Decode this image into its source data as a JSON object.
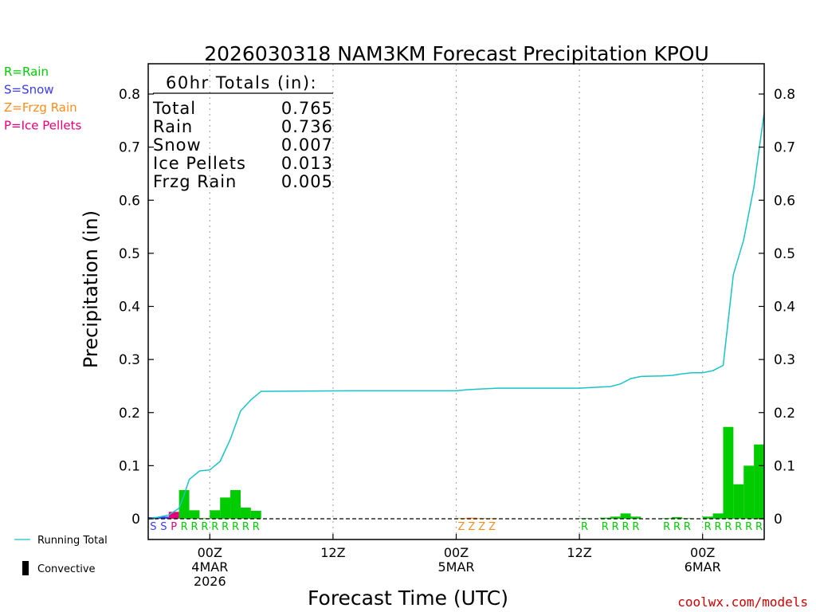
{
  "chart_data": {
    "type": "bar",
    "title": "2026030318 NAM3KM Forecast Precipitation KPOU",
    "xlabel": "Forecast Time (UTC)",
    "ylabel": "Precipitation (in)",
    "ylim": [
      0,
      0.85
    ],
    "xlim": [
      0,
      60
    ],
    "y_ticks": [
      0,
      0.1,
      0.2,
      0.3,
      0.4,
      0.5,
      0.6,
      0.7,
      0.8
    ],
    "y_tick_labels": [
      "0",
      "0.1",
      "0.2",
      "0.3",
      "0.4",
      "0.5",
      "0.6",
      "0.7",
      "0.8"
    ],
    "x_ticks": [
      {
        "hour": 6,
        "lines": [
          "00Z",
          "4MAR",
          "2026"
        ]
      },
      {
        "hour": 18,
        "lines": [
          "12Z"
        ]
      },
      {
        "hour": 30,
        "lines": [
          "00Z",
          "5MAR"
        ]
      },
      {
        "hour": 42,
        "lines": [
          "12Z"
        ]
      },
      {
        "hour": 54,
        "lines": [
          "00Z",
          "6MAR"
        ]
      }
    ],
    "legend": [
      {
        "label": "R=Rain",
        "color": "#00cc00"
      },
      {
        "label": "S=Snow",
        "color": "#3a3aff"
      },
      {
        "label": "Z=Frzg Rain",
        "color": "#ff8c1a"
      },
      {
        "label": "P=Ice Pellets",
        "color": "#e6007a"
      }
    ],
    "line_legend": "Running Total",
    "bar_legend": "Convective",
    "totals": {
      "header": "60hr Totals (in):",
      "rows": [
        {
          "label": "Total",
          "value": "0.765"
        },
        {
          "label": "Rain",
          "value": "0.736"
        },
        {
          "label": "Snow",
          "value": "0.007"
        },
        {
          "label": "Ice Pellets",
          "value": "0.013"
        },
        {
          "label": "Frzg Rain",
          "value": "0.005"
        }
      ]
    },
    "hourly": [
      {
        "hour": 1,
        "value": 0.003,
        "type": "S"
      },
      {
        "hour": 2,
        "value": 0.004,
        "type": "S"
      },
      {
        "hour": 3,
        "value": 0.013,
        "type": "P"
      },
      {
        "hour": 4,
        "value": 0.054,
        "type": "R"
      },
      {
        "hour": 5,
        "value": 0.016,
        "type": "R"
      },
      {
        "hour": 6,
        "value": 0.001,
        "type": "R"
      },
      {
        "hour": 7,
        "value": 0.016,
        "type": "R"
      },
      {
        "hour": 8,
        "value": 0.04,
        "type": "R"
      },
      {
        "hour": 9,
        "value": 0.054,
        "type": "R"
      },
      {
        "hour": 10,
        "value": 0.021,
        "type": "R"
      },
      {
        "hour": 11,
        "value": 0.015,
        "type": "R"
      },
      {
        "hour": 31,
        "value": 0.001,
        "type": "Z"
      },
      {
        "hour": 32,
        "value": 0.002,
        "type": "Z"
      },
      {
        "hour": 33,
        "value": 0.001,
        "type": "Z"
      },
      {
        "hour": 34,
        "value": 0.001,
        "type": "Z"
      },
      {
        "hour": 43,
        "value": 0.001,
        "type": "R"
      },
      {
        "hour": 45,
        "value": 0.002,
        "type": "R"
      },
      {
        "hour": 46,
        "value": 0.004,
        "type": "R"
      },
      {
        "hour": 47,
        "value": 0.01,
        "type": "R"
      },
      {
        "hour": 48,
        "value": 0.004,
        "type": "R"
      },
      {
        "hour": 51,
        "value": 0.001,
        "type": "R"
      },
      {
        "hour": 52,
        "value": 0.003,
        "type": "R"
      },
      {
        "hour": 53,
        "value": 0.001,
        "type": "R"
      },
      {
        "hour": 55,
        "value": 0.004,
        "type": "R"
      },
      {
        "hour": 56,
        "value": 0.01,
        "type": "R"
      },
      {
        "hour": 57,
        "value": 0.173,
        "type": "R"
      },
      {
        "hour": 58,
        "value": 0.065,
        "type": "R"
      },
      {
        "hour": 59,
        "value": 0.1,
        "type": "R"
      },
      {
        "hour": 60,
        "value": 0.14,
        "type": "R"
      }
    ],
    "running_total": [
      {
        "hour": 0,
        "value": 0.0
      },
      {
        "hour": 1,
        "value": 0.003
      },
      {
        "hour": 2,
        "value": 0.007
      },
      {
        "hour": 3,
        "value": 0.02
      },
      {
        "hour": 3.5,
        "value": 0.045
      },
      {
        "hour": 4,
        "value": 0.074
      },
      {
        "hour": 5,
        "value": 0.09
      },
      {
        "hour": 6,
        "value": 0.092
      },
      {
        "hour": 7,
        "value": 0.108
      },
      {
        "hour": 8,
        "value": 0.15
      },
      {
        "hour": 9,
        "value": 0.203
      },
      {
        "hour": 10,
        "value": 0.224
      },
      {
        "hour": 11,
        "value": 0.24
      },
      {
        "hour": 20,
        "value": 0.241
      },
      {
        "hour": 30,
        "value": 0.241
      },
      {
        "hour": 31,
        "value": 0.243
      },
      {
        "hour": 33,
        "value": 0.245
      },
      {
        "hour": 34,
        "value": 0.246
      },
      {
        "hour": 42,
        "value": 0.246
      },
      {
        "hour": 43,
        "value": 0.247
      },
      {
        "hour": 45,
        "value": 0.249
      },
      {
        "hour": 46,
        "value": 0.254
      },
      {
        "hour": 47,
        "value": 0.264
      },
      {
        "hour": 48,
        "value": 0.268
      },
      {
        "hour": 50,
        "value": 0.269
      },
      {
        "hour": 51,
        "value": 0.27
      },
      {
        "hour": 52,
        "value": 0.273
      },
      {
        "hour": 53,
        "value": 0.275
      },
      {
        "hour": 54,
        "value": 0.275
      },
      {
        "hour": 55,
        "value": 0.279
      },
      {
        "hour": 56,
        "value": 0.289
      },
      {
        "hour": 57,
        "value": 0.46
      },
      {
        "hour": 58,
        "value": 0.525
      },
      {
        "hour": 59,
        "value": 0.625
      },
      {
        "hour": 60,
        "value": 0.765
      }
    ],
    "ptype_labels": [
      {
        "hour": 1,
        "type": "S"
      },
      {
        "hour": 2,
        "type": "S"
      },
      {
        "hour": 3,
        "type": "P"
      },
      {
        "hour": 4,
        "type": "R"
      },
      {
        "hour": 5,
        "type": "R"
      },
      {
        "hour": 6,
        "type": "R"
      },
      {
        "hour": 7,
        "type": "R"
      },
      {
        "hour": 8,
        "type": "R"
      },
      {
        "hour": 9,
        "type": "R"
      },
      {
        "hour": 10,
        "type": "R"
      },
      {
        "hour": 11,
        "type": "R"
      },
      {
        "hour": 31,
        "type": "Z"
      },
      {
        "hour": 32,
        "type": "Z"
      },
      {
        "hour": 33,
        "type": "Z"
      },
      {
        "hour": 34,
        "type": "Z"
      },
      {
        "hour": 43,
        "type": "R"
      },
      {
        "hour": 45,
        "type": "R"
      },
      {
        "hour": 46,
        "type": "R"
      },
      {
        "hour": 47,
        "type": "R"
      },
      {
        "hour": 48,
        "type": "R"
      },
      {
        "hour": 51,
        "type": "R"
      },
      {
        "hour": 52,
        "type": "R"
      },
      {
        "hour": 53,
        "type": "R"
      },
      {
        "hour": 55,
        "type": "R"
      },
      {
        "hour": 56,
        "type": "R"
      },
      {
        "hour": 57,
        "type": "R"
      },
      {
        "hour": 58,
        "type": "R"
      },
      {
        "hour": 59,
        "type": "R"
      },
      {
        "hour": 60,
        "type": "R"
      }
    ]
  },
  "colors": {
    "rain": "#00cc00",
    "snow": "#3a3aff",
    "frzg_rain": "#ff8c1a",
    "ice_pellets": "#e6007a",
    "running_total": "#19c4c8",
    "watermark": "#cc0000"
  },
  "watermark": "coolwx.com/models"
}
